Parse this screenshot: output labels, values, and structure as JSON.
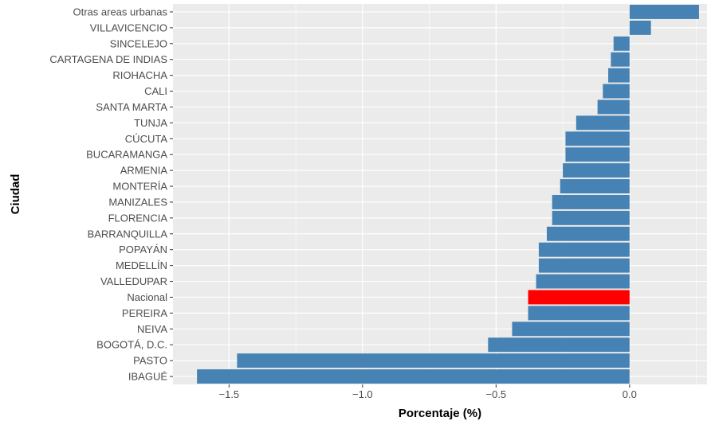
{
  "chart_data": {
    "type": "bar",
    "orientation": "horizontal",
    "xlabel": "Porcentaje (%)",
    "ylabel": "Ciudad",
    "xlim": [
      -1.71,
      0.29
    ],
    "x_ticks": [
      -1.5,
      -1.0,
      -0.5,
      0.0
    ],
    "x_tick_labels": [
      "−1.5",
      "−1.0",
      "−0.5",
      "0.0"
    ],
    "grid": true,
    "colors": {
      "default": "#4682B4",
      "highlight": "#FF0000",
      "panel": "#EBEBEB",
      "grid": "#FFFFFF"
    },
    "categories": [
      "Otras areas urbanas",
      "VILLAVICENCIO",
      "SINCELEJO",
      "CARTAGENA DE INDIAS",
      "RIOHACHA",
      "CALI",
      "SANTA MARTA",
      "TUNJA",
      "CÚCUTA",
      "BUCARAMANGA",
      "ARMENIA",
      "MONTERÍA",
      "MANIZALES",
      "FLORENCIA",
      "BARRANQUILLA",
      "POPAYÁN",
      "MEDELLÍN",
      "VALLEDUPAR",
      "Nacional",
      "PEREIRA",
      "NEIVA",
      "BOGOTÁ, D.C.",
      "PASTO",
      "IBAGUÉ"
    ],
    "values": [
      0.26,
      0.08,
      -0.06,
      -0.07,
      -0.08,
      -0.1,
      -0.12,
      -0.2,
      -0.24,
      -0.24,
      -0.25,
      -0.26,
      -0.29,
      -0.29,
      -0.31,
      -0.34,
      -0.34,
      -0.35,
      -0.38,
      -0.38,
      -0.44,
      -0.53,
      -1.47,
      -1.62
    ],
    "highlight": [
      "Nacional"
    ]
  }
}
